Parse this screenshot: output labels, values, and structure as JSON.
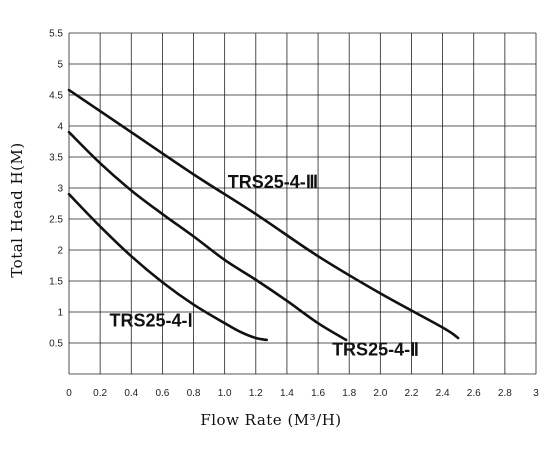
{
  "chart_data": {
    "type": "line",
    "xlabel": "Flow Rate (M³/H)",
    "ylabel": "Total Head H(M)",
    "xlim": [
      0,
      3
    ],
    "ylim": [
      0,
      5.5
    ],
    "xticks": [
      "0",
      "0.2",
      "0.4",
      "0.6",
      "0.8",
      "1.0",
      "1.2",
      "1.4",
      "1.6",
      "1.8",
      "2.0",
      "2.2",
      "2.4",
      "2.6",
      "2.8",
      "3"
    ],
    "yticks": [
      "0.5",
      "1",
      "1.5",
      "2",
      "2.5",
      "3",
      "3.5",
      "4",
      "4.5",
      "5",
      "5.5"
    ],
    "grid": true,
    "series": [
      {
        "name": "TRS25-4-Ⅰ",
        "x": [
          0.0,
          0.2,
          0.4,
          0.6,
          0.8,
          1.0,
          1.1,
          1.2,
          1.27
        ],
        "y": [
          2.9,
          2.38,
          1.9,
          1.48,
          1.12,
          0.82,
          0.68,
          0.58,
          0.55
        ]
      },
      {
        "name": "TRS25-4-Ⅱ",
        "x": [
          0.0,
          0.2,
          0.4,
          0.6,
          0.8,
          1.0,
          1.2,
          1.4,
          1.6,
          1.78
        ],
        "y": [
          3.9,
          3.4,
          2.96,
          2.58,
          2.22,
          1.84,
          1.52,
          1.18,
          0.82,
          0.55
        ]
      },
      {
        "name": "TRS25-4-Ⅲ",
        "x": [
          0.0,
          0.4,
          0.8,
          1.2,
          1.6,
          2.0,
          2.4,
          2.5
        ],
        "y": [
          4.58,
          3.9,
          3.22,
          2.58,
          1.9,
          1.3,
          0.75,
          0.58
        ]
      }
    ],
    "labels": [
      {
        "series": "TRS25-4-Ⅲ",
        "text": "TRS25-4-Ⅲ",
        "at": [
          1.02,
          3.0
        ]
      },
      {
        "series": "TRS25-4-Ⅰ",
        "text": "TRS25-4-Ⅰ",
        "at": [
          0.26,
          0.77
        ]
      },
      {
        "series": "TRS25-4-Ⅱ",
        "text": "TRS25-4-Ⅱ",
        "at": [
          1.69,
          0.3
        ]
      }
    ],
    "line_color": "#111111",
    "grid_color": "#222222"
  }
}
